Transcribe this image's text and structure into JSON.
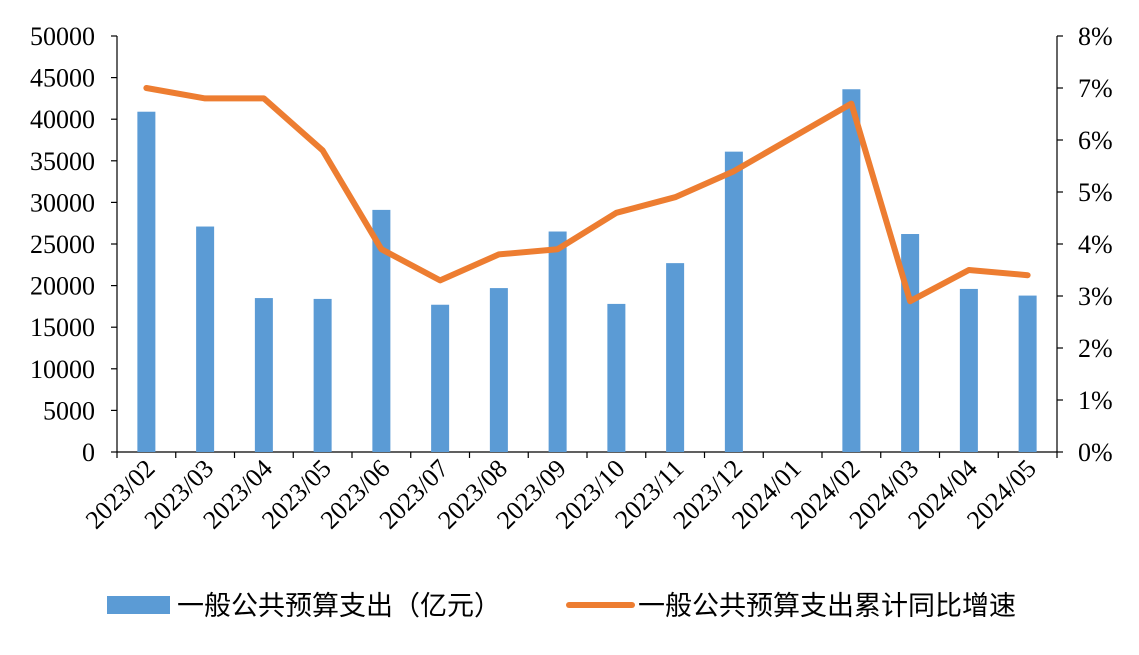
{
  "chart_data": {
    "type": "bar+line",
    "categories": [
      "2023/02",
      "2023/03",
      "2023/04",
      "2023/05",
      "2023/06",
      "2023/07",
      "2023/08",
      "2023/09",
      "2023/10",
      "2023/11",
      "2023/12",
      "2024/01",
      "2024/02",
      "2024/03",
      "2024/04",
      "2024/05"
    ],
    "series": [
      {
        "name": "一般公共预算支出（亿元）",
        "type": "bar",
        "axis": "left",
        "color": "#5b9bd5",
        "values": [
          40900,
          27100,
          18500,
          18400,
          29100,
          17700,
          19700,
          26500,
          17800,
          22700,
          36100,
          null,
          43600,
          26200,
          19600,
          18800
        ]
      },
      {
        "name": "一般公共预算支出累计同比增速",
        "type": "line",
        "axis": "right",
        "color": "#ed7d31",
        "values": [
          7.0,
          6.8,
          6.8,
          5.8,
          3.9,
          3.3,
          3.8,
          3.9,
          4.6,
          4.9,
          5.4,
          null,
          6.7,
          2.9,
          3.5,
          3.4
        ]
      }
    ],
    "y_left": {
      "ylim": [
        0,
        50000
      ],
      "ticks": [
        "0",
        "5000",
        "10000",
        "15000",
        "20000",
        "25000",
        "30000",
        "35000",
        "40000",
        "45000",
        "50000"
      ]
    },
    "y_right": {
      "ylim": [
        0,
        8
      ],
      "ticks": [
        "0%",
        "1%",
        "2%",
        "3%",
        "4%",
        "5%",
        "6%",
        "7%",
        "8%"
      ]
    },
    "grid": false,
    "legend_position": "bottom"
  }
}
